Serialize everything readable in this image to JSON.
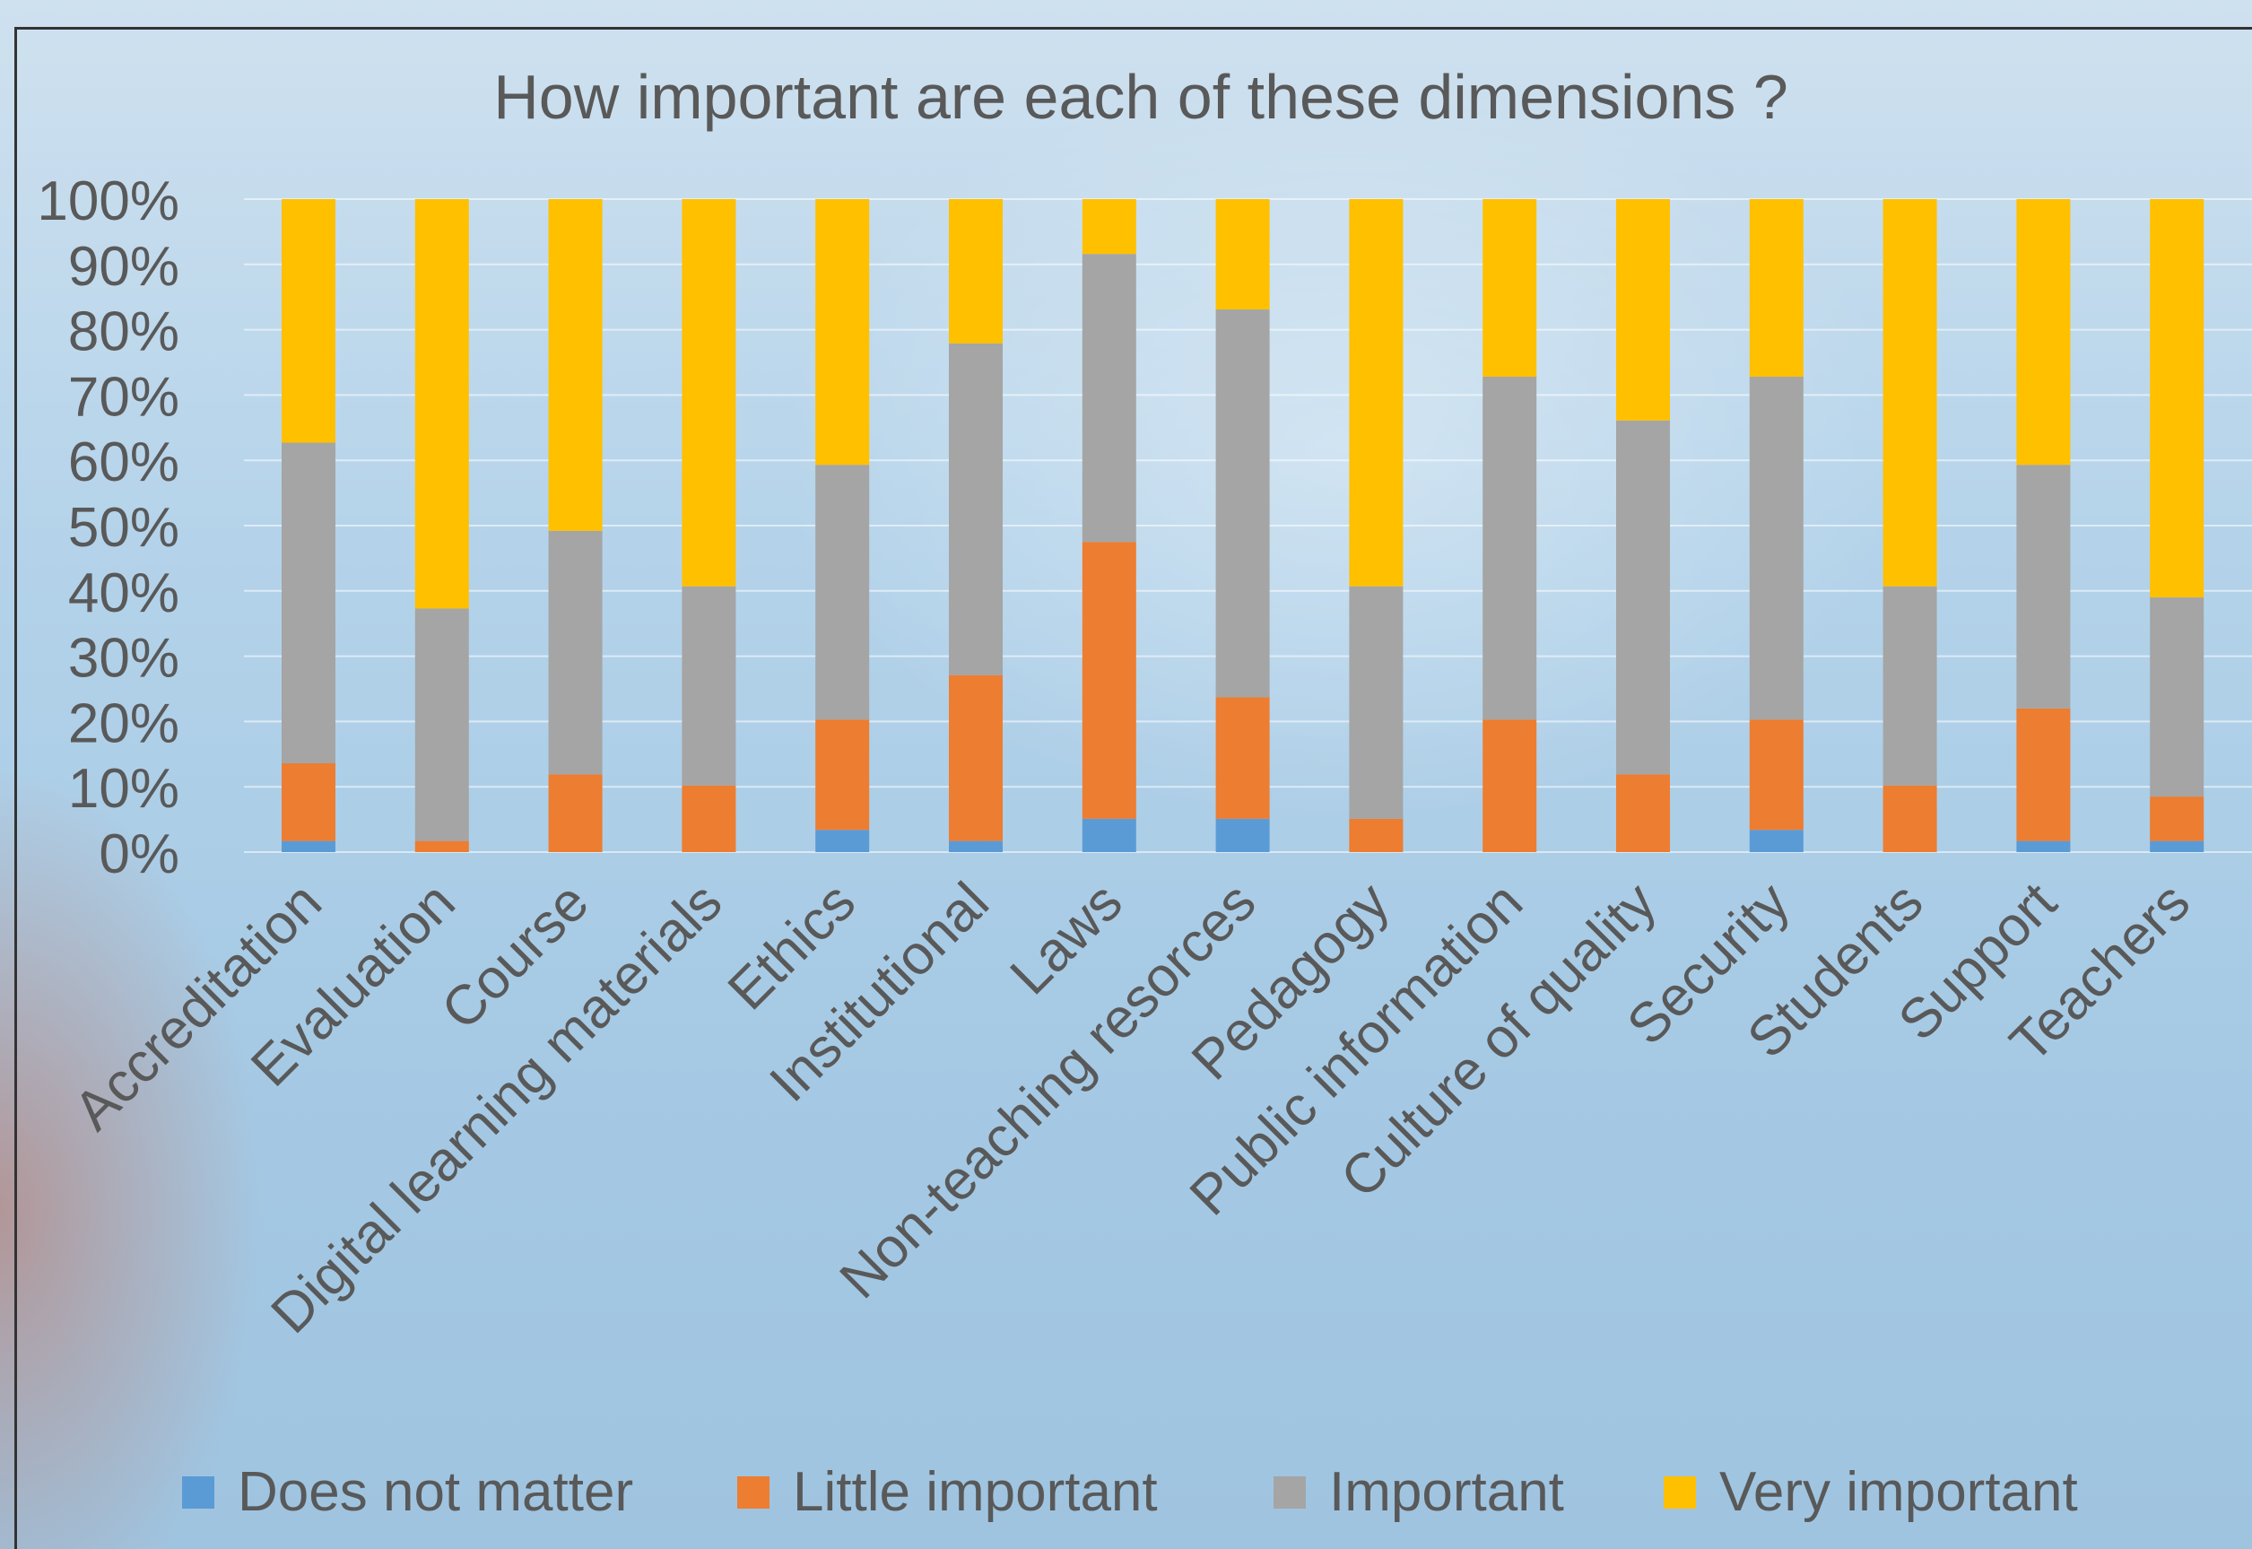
{
  "chart_data": {
    "type": "bar",
    "stacked": true,
    "title": "How important are each of these dimensions ?",
    "xlabel": "",
    "ylabel": "",
    "ylim": [
      0,
      100
    ],
    "y_ticks": [
      "0%",
      "10%",
      "20%",
      "30%",
      "40%",
      "50%",
      "60%",
      "70%",
      "80%",
      "90%",
      "100%"
    ],
    "grid": true,
    "legend_position": "bottom",
    "categories": [
      "Accreditation",
      "Evaluation",
      "Course",
      "Digital learning materials",
      "Ethics",
      "Institutional",
      "Laws",
      "Non-teaching resorces",
      "Pedagogy",
      "Public information",
      "Culture of quality",
      "Security",
      "Students",
      "Support",
      "Teachers"
    ],
    "series": [
      {
        "name": "Does not matter",
        "color": "#5b9bd5",
        "values": [
          1.7,
          0,
          0,
          0,
          3.4,
          1.7,
          5.1,
          5.1,
          0,
          0,
          0,
          3.4,
          0,
          1.7,
          1.7
        ]
      },
      {
        "name": "Little important",
        "color": "#ed7d31",
        "values": [
          11.9,
          1.7,
          11.9,
          10.2,
          16.9,
          25.4,
          42.4,
          18.6,
          5.1,
          20.3,
          11.9,
          16.9,
          10.2,
          20.3,
          6.8
        ]
      },
      {
        "name": "Important",
        "color": "#a5a5a5",
        "values": [
          49.1,
          35.6,
          37.3,
          30.5,
          39,
          50.8,
          44.1,
          59.4,
          35.6,
          52.5,
          54.2,
          52.5,
          30.5,
          37.3,
          30.5
        ]
      },
      {
        "name": "Very important",
        "color": "#ffc000",
        "values": [
          37.3,
          62.7,
          50.8,
          59.3,
          40.7,
          22.1,
          8.4,
          16.9,
          59.3,
          27.2,
          33.9,
          27.2,
          59.3,
          40.7,
          61
        ]
      }
    ]
  }
}
